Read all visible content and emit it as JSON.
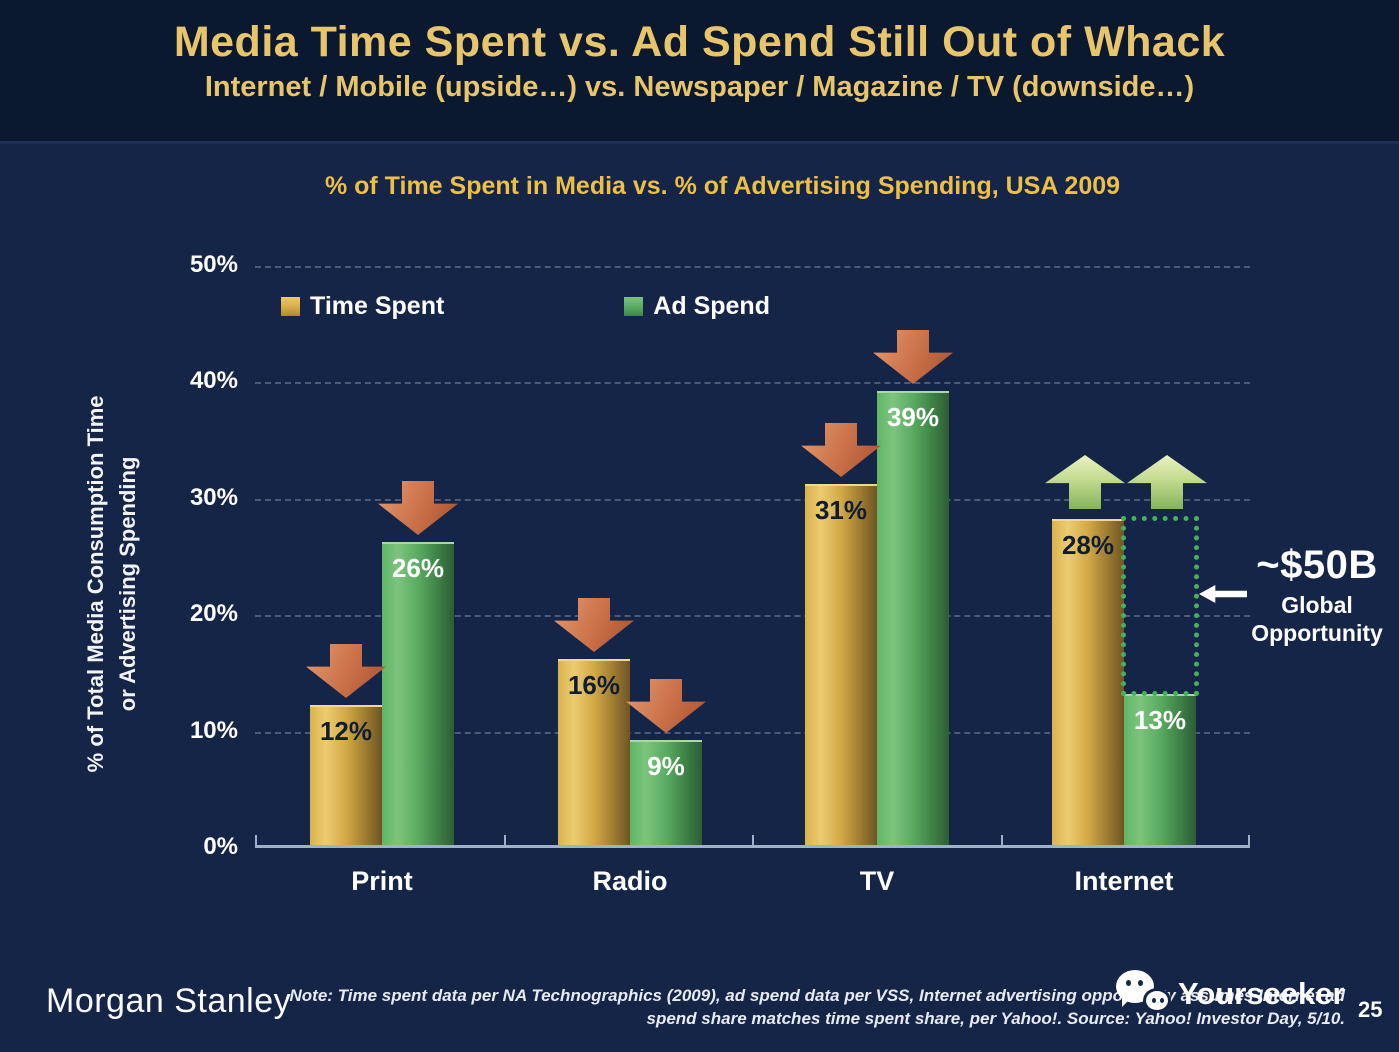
{
  "header": {
    "title": "Media Time Spent vs. Ad Spend Still Out of Whack",
    "subtitle": "Internet / Mobile (upside…) vs. Newspaper / Magazine / TV (downside…)"
  },
  "chart_data": {
    "type": "bar",
    "title": "% of Time Spent in Media vs. % of Advertising Spending, USA 2009",
    "ylabel": "% of Total Media Consumption Time or Advertising Spending",
    "ylabel_lines": [
      "% of Total Media Consumption Time",
      "or Advertising Spending"
    ],
    "categories": [
      "Print",
      "Radio",
      "TV",
      "Internet"
    ],
    "series": [
      {
        "name": "Time Spent",
        "color": "#D9B250",
        "values": [
          12,
          16,
          31,
          28
        ],
        "labels": [
          "12%",
          "16%",
          "31%",
          "28%"
        ]
      },
      {
        "name": "Ad Spend",
        "color": "#5FB667",
        "values": [
          26,
          9,
          39,
          13
        ],
        "labels": [
          "26%",
          "9%",
          "39%",
          "13%"
        ]
      }
    ],
    "yticks": [
      "50%",
      "40%",
      "30%",
      "20%",
      "10%",
      "0%"
    ],
    "ylim": [
      0,
      50
    ],
    "grid": "horizontal-dashed",
    "legend_position": "top-left",
    "trend_arrows": [
      {
        "category": "Print",
        "time_spent": "down",
        "ad_spend": "down"
      },
      {
        "category": "Radio",
        "time_spent": "down",
        "ad_spend": "down"
      },
      {
        "category": "TV",
        "time_spent": "down",
        "ad_spend": "down"
      },
      {
        "category": "Internet",
        "time_spent": "up",
        "ad_spend": "up"
      }
    ]
  },
  "annotation": {
    "value": "~$50B",
    "label_line1": "Global",
    "label_line2": "Opportunity"
  },
  "footer": {
    "brand": "Morgan Stanley",
    "note_line1": "Note: Time spent data per NA Technographics (2009), ad spend data per VSS, Internet advertising opportunity assumes Internet ad",
    "note_line2": "spend share matches time spent share, per Yahoo!. Source: Yahoo! Investor Day, 5/10.",
    "page_number": "25"
  },
  "watermark": {
    "text": "Yourseeker",
    "icon": "wechat-icon"
  },
  "colors": {
    "background": "#142548",
    "header_background": "#0A1830",
    "title_gold": "#E8C56A",
    "chart_title_gold": "#EDBF45",
    "bar_gold": "#D9B250",
    "bar_green": "#5FB667",
    "arrow_red": "#C96F48",
    "arrow_green": "#C3DC8F",
    "dotted_green": "#46B05A",
    "axis": "#9FB0C9"
  }
}
